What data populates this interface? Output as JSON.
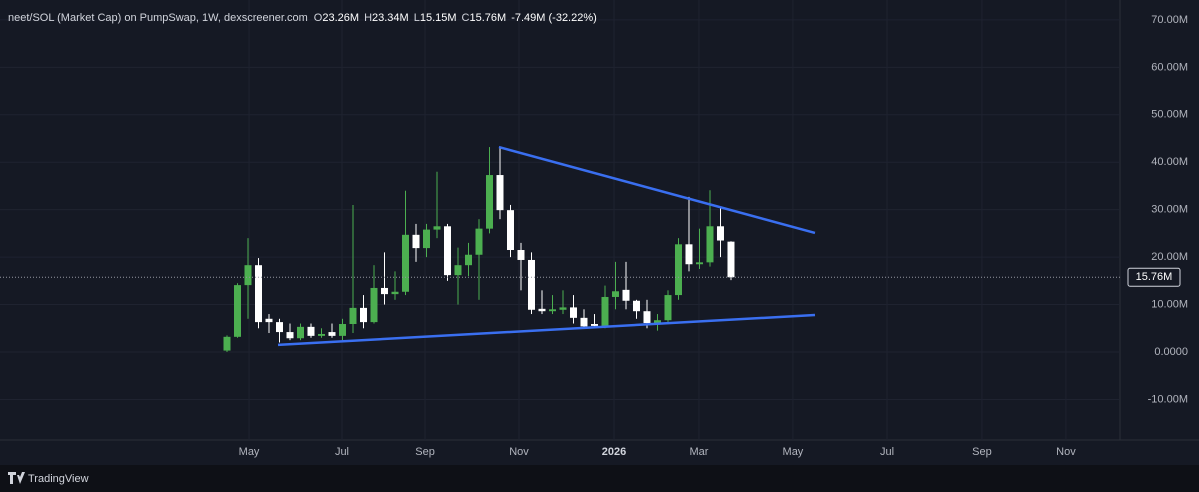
{
  "chart_data": {
    "type": "candlestick",
    "title": "neet/SOL (Market Cap) on PumpSwap, 1W, dexscreener.com",
    "header_fields": [
      {
        "key": "O",
        "value": "23.26M"
      },
      {
        "key": "H",
        "value": "23.34M"
      },
      {
        "key": "L",
        "value": "15.15M"
      },
      {
        "key": "C",
        "value": "15.76M"
      }
    ],
    "change": "-7.49M (-32.22%)",
    "open": [
      0.3,
      3.2,
      14.1,
      18.3,
      7,
      6.3,
      4.2,
      2.9,
      5.3,
      3.4,
      4.2,
      3.4,
      5.9,
      9.3,
      6.3,
      13.5,
      12.2,
      12.7,
      24.7,
      21.9,
      25.8,
      26.5,
      16.2,
      18.3,
      20.5,
      26,
      37.3,
      29.9,
      21.5,
      19.4,
      9.1,
      8.6,
      8.9,
      9.4,
      7.2,
      5.9,
      5.5,
      11.6,
      13.1,
      10.8,
      8.6,
      6.1,
      6.7,
      12,
      22.7,
      18.5,
      18.9,
      26.5,
      23.26
    ],
    "high": [
      3.5,
      14.5,
      24,
      19.8,
      8,
      7,
      6,
      6,
      6,
      5,
      6,
      7,
      31,
      12,
      18.3,
      21,
      17,
      34,
      27,
      27,
      38,
      27,
      22,
      23,
      28,
      43.2,
      43.2,
      31,
      23,
      21,
      13,
      12,
      13,
      12,
      9,
      8,
      14,
      19,
      19,
      11,
      11,
      8,
      13,
      24,
      32.7,
      26,
      34.1,
      30.5,
      23.34
    ],
    "low": [
      0,
      3,
      7,
      5,
      4,
      2,
      2.5,
      2.5,
      3,
      3,
      3,
      2.5,
      4,
      5,
      6,
      10,
      11,
      12,
      19,
      20,
      24,
      15,
      10,
      16,
      11,
      25,
      28,
      20,
      13,
      8,
      8,
      8,
      8,
      6,
      5,
      5,
      5,
      9,
      9,
      7,
      5,
      4.5,
      6,
      11,
      17,
      17.5,
      18,
      20,
      15.15
    ],
    "close": [
      3.2,
      14.1,
      18.3,
      6.3,
      6.3,
      4.2,
      2.9,
      5.3,
      3.4,
      3.8,
      3.4,
      5.9,
      9.3,
      6.3,
      13.5,
      12.2,
      12.7,
      24.7,
      21.9,
      25.8,
      26.5,
      16.2,
      18.3,
      20.5,
      26,
      37.3,
      29.9,
      21.5,
      19.4,
      8.9,
      8.6,
      9.0,
      9.4,
      7.2,
      5.4,
      5.5,
      11.6,
      12.8,
      10.8,
      8.6,
      6.1,
      6.7,
      12,
      22.7,
      18.5,
      18.9,
      26.5,
      23.5,
      15.76
    ],
    "up_color": "#4caf50",
    "down_color": "#ffffff",
    "line_color": "#3a6ff0",
    "trend_lines": [
      {
        "x": [
          25.9,
          56
        ],
        "y": [
          43.2,
          25.1
        ]
      },
      {
        "x": [
          4.86,
          56
        ],
        "y": [
          1.5,
          7.8
        ]
      }
    ],
    "last_price": {
      "value": 15.76,
      "label": "15.76M"
    },
    "xlim": [
      -21.62,
      85.05
    ],
    "xticks": [
      {
        "value": 2.1,
        "label": "May"
      },
      {
        "value": 10.95,
        "label": "Jul"
      },
      {
        "value": 18.86,
        "label": "Sep"
      },
      {
        "value": 27.81,
        "label": "Nov"
      },
      {
        "value": 36.86,
        "label": "2026"
      },
      {
        "value": 44.95,
        "label": "Mar"
      },
      {
        "value": 53.9,
        "label": "May"
      },
      {
        "value": 62.86,
        "label": "Jul"
      },
      {
        "value": 71.9,
        "label": "Sep"
      },
      {
        "value": 79.9,
        "label": "Nov"
      }
    ],
    "ylim": [
      -18.55,
      74.2
    ],
    "yticks": [
      {
        "value": 70,
        "label": "70.00M"
      },
      {
        "value": 60,
        "label": "60.00M"
      },
      {
        "value": 50,
        "label": "50.00M"
      },
      {
        "value": 40,
        "label": "40.00M"
      },
      {
        "value": 30,
        "label": "30.00M"
      },
      {
        "value": 20,
        "label": "20.00M"
      },
      {
        "value": 10,
        "label": "10.00M"
      },
      {
        "value": 0,
        "label": "0.0000"
      },
      {
        "value": -10,
        "label": "-10.00M"
      }
    ],
    "grid": true,
    "footer": "TradingView"
  }
}
